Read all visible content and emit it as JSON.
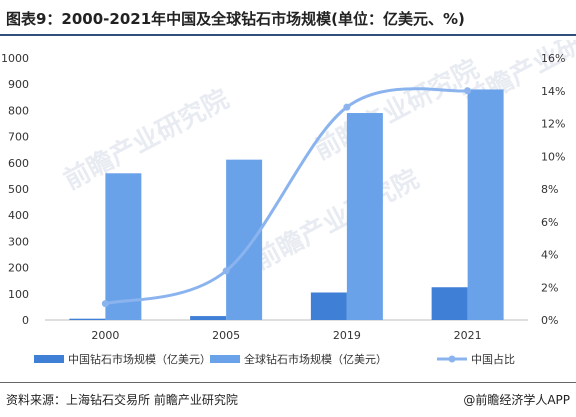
{
  "title": "图表9：2000-2021年中国及全球钻石市场规模(单位：亿美元、%)",
  "source": "资料来源：上海钻石交易所 前瞻产业研究院",
  "credit": "@前瞻经济学人APP",
  "watermark": "前瞻产业研究院",
  "colors": {
    "china_bar": "#3f7fd6",
    "global_bar": "#6aa2ea",
    "line": "#8bb4ef",
    "title_rule": "#2f4e7a"
  },
  "chart_data": {
    "type": "bar",
    "categories": [
      "2000",
      "2005",
      "2019",
      "2021"
    ],
    "series": [
      {
        "name": "中国钻石市场规模（亿美元）",
        "type": "bar",
        "axis": "left",
        "values": [
          5,
          15,
          105,
          125
        ]
      },
      {
        "name": "全球钻石市场规模（亿美元）",
        "type": "bar",
        "axis": "left",
        "values": [
          560,
          612,
          790,
          880
        ]
      },
      {
        "name": "中国占比",
        "type": "line",
        "axis": "right",
        "values": [
          1.0,
          3.0,
          13.0,
          14.0
        ]
      }
    ],
    "ylim": [
      0,
      1000
    ],
    "yticks": [
      0,
      100,
      200,
      300,
      400,
      500,
      600,
      700,
      800,
      900,
      1000
    ],
    "y2lim": [
      0,
      16
    ],
    "y2ticks": [
      "0%",
      "2%",
      "4%",
      "6%",
      "8%",
      "10%",
      "12%",
      "14%",
      "16%"
    ],
    "legend_position": "bottom",
    "grid": false
  }
}
